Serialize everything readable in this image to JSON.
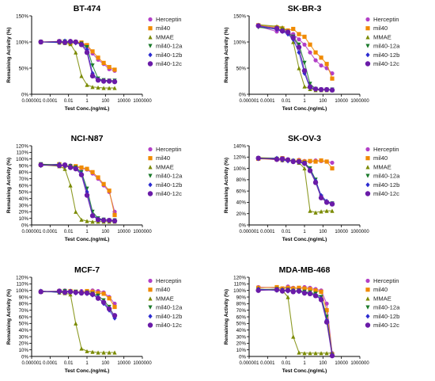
{
  "legend_labels": [
    "Herceptin",
    "mil40",
    "MMAE",
    "mil40-12a",
    "mil40-12b",
    "mil40-12c"
  ],
  "colors": {
    "Herceptin": "#b23fc6",
    "mil40": "#f08a00",
    "MMAE": "#7a8a00",
    "mil40-12a": "#1a7a2a",
    "mil40-12b": "#2b2bd0",
    "mil40-12c": "#6a1ba8"
  },
  "chart_data": [
    {
      "type": "scatter",
      "title": "BT-474",
      "xlabel": "Test Conc.(ng/mL)",
      "ylabel": "Remaining Activity (%)",
      "x_scale": "log",
      "xlim": [
        1e-06,
        1000000
      ],
      "x_ticks": [
        "0.000001",
        "0.0001",
        "0.01",
        "1",
        "100",
        "10000",
        "1000000"
      ],
      "ylim": [
        0,
        150
      ],
      "y_ticks": [
        "0%",
        "50%",
        "100%",
        "150%"
      ],
      "x": [
        1e-05,
        0.001,
        0.004,
        0.016,
        0.06,
        0.25,
        1,
        4,
        16,
        64,
        256,
        1000
      ],
      "series": [
        {
          "name": "Herceptin",
          "values": [
            100,
            100,
            99,
            102,
            100,
            98,
            92,
            78,
            66,
            58,
            48,
            45
          ]
        },
        {
          "name": "mil40",
          "values": [
            100,
            101,
            100,
            98,
            100,
            99,
            94,
            82,
            70,
            60,
            52,
            47
          ]
        },
        {
          "name": "MMAE",
          "values": [
            100,
            99,
            98,
            96,
            80,
            35,
            18,
            14,
            13,
            12,
            12,
            12
          ]
        },
        {
          "name": "mil40-12a",
          "values": [
            100,
            100,
            101,
            98,
            99,
            97,
            90,
            55,
            30,
            27,
            26,
            26
          ]
        },
        {
          "name": "mil40-12b",
          "values": [
            100,
            99,
            102,
            100,
            98,
            96,
            85,
            40,
            28,
            26,
            25,
            25
          ]
        },
        {
          "name": "mil40-12c",
          "values": [
            100,
            101,
            99,
            101,
            100,
            95,
            80,
            35,
            27,
            25,
            25,
            24
          ]
        }
      ]
    },
    {
      "type": "scatter",
      "title": "SK-BR-3",
      "xlabel": "Test Conc.(ng/mL)",
      "ylabel": "Remaining Activity (%)",
      "x_scale": "log",
      "xlim": [
        1e-06,
        1000000
      ],
      "x_ticks": [
        "0.000001",
        "0.0001",
        "0.01",
        "1",
        "100",
        "10000",
        "1000000"
      ],
      "ylim": [
        0,
        150
      ],
      "y_ticks": [
        "0%",
        "50%",
        "100%",
        "150%"
      ],
      "x": [
        1e-05,
        0.001,
        0.004,
        0.016,
        0.06,
        0.25,
        1,
        4,
        16,
        64,
        256,
        1000
      ],
      "series": [
        {
          "name": "Herceptin",
          "values": [
            130,
            120,
            125,
            118,
            115,
            105,
            95,
            80,
            65,
            55,
            50,
            40
          ]
        },
        {
          "name": "mil40",
          "values": [
            132,
            128,
            126,
            122,
            125,
            115,
            110,
            95,
            80,
            70,
            58,
            30
          ]
        },
        {
          "name": "MMAE",
          "values": [
            133,
            130,
            128,
            120,
            100,
            50,
            15,
            10,
            8,
            8,
            8,
            8
          ]
        },
        {
          "name": "mil40-12a",
          "values": [
            128,
            125,
            122,
            118,
            110,
            95,
            60,
            20,
            10,
            9,
            9,
            9
          ]
        },
        {
          "name": "mil40-12b",
          "values": [
            130,
            124,
            120,
            115,
            105,
            80,
            40,
            12,
            10,
            9,
            9,
            9
          ]
        },
        {
          "name": "mil40-12c",
          "values": [
            131,
            126,
            121,
            119,
            108,
            90,
            45,
            14,
            10,
            9,
            9,
            8
          ]
        }
      ]
    },
    {
      "type": "scatter",
      "title": "NCI-N87",
      "xlabel": "Test Conc.(ng/mL)",
      "ylabel": "Remaining Activity (%)",
      "x_scale": "log",
      "xlim": [
        1e-06,
        1000000
      ],
      "x_ticks": [
        "0.000001",
        "0.0001",
        "0.01",
        "1",
        "100",
        "10000",
        "1000000"
      ],
      "ylim": [
        0,
        120
      ],
      "y_ticks": [
        "0%",
        "10%",
        "20%",
        "30%",
        "40%",
        "50%",
        "60%",
        "70%",
        "80%",
        "90%",
        "100%",
        "110%",
        "120%"
      ],
      "x": [
        1e-05,
        0.001,
        0.004,
        0.016,
        0.06,
        0.25,
        1,
        4,
        16,
        64,
        256,
        1000
      ],
      "series": [
        {
          "name": "Herceptin",
          "values": [
            92,
            90,
            89,
            90,
            88,
            86,
            84,
            78,
            70,
            60,
            50,
            20
          ]
        },
        {
          "name": "mil40",
          "values": [
            91,
            92,
            90,
            88,
            89,
            87,
            85,
            80,
            72,
            62,
            52,
            15
          ]
        },
        {
          "name": "MMAE",
          "values": [
            91,
            89,
            85,
            60,
            20,
            8,
            6,
            5,
            5,
            5,
            5,
            5
          ]
        },
        {
          "name": "mil40-12a",
          "values": [
            92,
            91,
            90,
            89,
            87,
            80,
            55,
            20,
            10,
            8,
            7,
            7
          ]
        },
        {
          "name": "mil40-12b",
          "values": [
            90,
            92,
            89,
            88,
            86,
            78,
            50,
            15,
            9,
            8,
            7,
            7
          ]
        },
        {
          "name": "mil40-12c",
          "values": [
            91,
            90,
            91,
            87,
            85,
            76,
            45,
            14,
            8,
            7,
            7,
            6
          ]
        }
      ]
    },
    {
      "type": "scatter",
      "title": "SK-OV-3",
      "xlabel": "Test Conc.(ng/mL)",
      "ylabel": "Remaining Activity (%)",
      "x_scale": "log",
      "xlim": [
        1e-06,
        1000000
      ],
      "x_ticks": [
        "0.000001",
        "0.0001",
        "0.01",
        "1",
        "100",
        "10000",
        "1000000"
      ],
      "ylim": [
        0,
        140
      ],
      "y_ticks": [
        "0%",
        "20%",
        "40%",
        "60%",
        "80%",
        "100%",
        "120%",
        "140%"
      ],
      "x": [
        1e-05,
        0.001,
        0.004,
        0.016,
        0.06,
        0.25,
        1,
        4,
        16,
        64,
        256,
        1000
      ],
      "series": [
        {
          "name": "Herceptin",
          "values": [
            118,
            115,
            114,
            116,
            112,
            115,
            113,
            112,
            114,
            113,
            112,
            110
          ]
        },
        {
          "name": "mil40",
          "values": [
            117,
            116,
            118,
            115,
            113,
            114,
            112,
            113,
            112,
            114,
            112,
            100
          ]
        },
        {
          "name": "MMAE",
          "values": [
            119,
            118,
            115,
            115,
            113,
            110,
            100,
            25,
            22,
            24,
            25,
            25
          ]
        },
        {
          "name": "mil40-12a",
          "values": [
            118,
            117,
            116,
            114,
            113,
            112,
            110,
            100,
            80,
            50,
            40,
            38
          ]
        },
        {
          "name": "mil40-12b",
          "values": [
            117,
            118,
            115,
            113,
            114,
            111,
            108,
            98,
            78,
            52,
            42,
            38
          ]
        },
        {
          "name": "mil40-12c",
          "values": [
            118,
            116,
            117,
            115,
            112,
            112,
            109,
            96,
            75,
            48,
            40,
            37
          ]
        }
      ]
    },
    {
      "type": "scatter",
      "title": "MCF-7",
      "xlabel": "Test Conc.(ng/mL)",
      "ylabel": "Remaining Activity (%)",
      "x_scale": "log",
      "xlim": [
        1e-06,
        1000000
      ],
      "x_ticks": [
        "0.000001",
        "0.0001",
        "0.01",
        "1",
        "100",
        "10000",
        "1000000"
      ],
      "ylim": [
        0,
        120
      ],
      "y_ticks": [
        "0%",
        "10%",
        "20%",
        "30%",
        "40%",
        "50%",
        "60%",
        "70%",
        "80%",
        "90%",
        "100%",
        "110%",
        "120%"
      ],
      "x": [
        1e-05,
        0.001,
        0.004,
        0.016,
        0.06,
        0.25,
        1,
        4,
        16,
        64,
        256,
        1000
      ],
      "series": [
        {
          "name": "Herceptin",
          "values": [
            99,
            98,
            100,
            98,
            97,
            99,
            98,
            100,
            99,
            97,
            90,
            80
          ]
        },
        {
          "name": "mil40",
          "values": [
            98,
            99,
            97,
            99,
            98,
            97,
            99,
            98,
            96,
            95,
            88,
            75
          ]
        },
        {
          "name": "MMAE",
          "values": [
            99,
            97,
            96,
            94,
            50,
            12,
            8,
            7,
            6,
            6,
            6,
            6
          ]
        },
        {
          "name": "mil40-12a",
          "values": [
            98,
            98,
            99,
            97,
            98,
            96,
            97,
            95,
            92,
            85,
            75,
            60
          ]
        },
        {
          "name": "mil40-12b",
          "values": [
            99,
            97,
            98,
            99,
            96,
            98,
            95,
            93,
            90,
            80,
            70,
            58
          ]
        },
        {
          "name": "mil40-12c",
          "values": [
            98,
            99,
            97,
            98,
            97,
            96,
            96,
            94,
            88,
            82,
            72,
            62
          ]
        }
      ]
    },
    {
      "type": "scatter",
      "title": "MDA-MB-468",
      "xlabel": "Test Conc.(ng/mL)",
      "ylabel": "Remaining Activity (%)",
      "x_scale": "log",
      "xlim": [
        1e-06,
        1000000
      ],
      "x_ticks": [
        "0.000001",
        "0.0001",
        "0.01",
        "1",
        "100",
        "10000",
        "1000000"
      ],
      "ylim": [
        0,
        120
      ],
      "y_ticks": [
        "0%",
        "10%",
        "20%",
        "30%",
        "40%",
        "50%",
        "60%",
        "70%",
        "80%",
        "90%",
        "100%",
        "110%",
        "120%"
      ],
      "x": [
        1e-05,
        0.001,
        0.004,
        0.016,
        0.06,
        0.25,
        1,
        4,
        16,
        64,
        256,
        1000
      ],
      "series": [
        {
          "name": "Herceptin",
          "values": [
            105,
            104,
            103,
            106,
            104,
            103,
            105,
            104,
            102,
            100,
            80,
            5
          ]
        },
        {
          "name": "mil40",
          "values": [
            104,
            105,
            103,
            104,
            103,
            104,
            103,
            102,
            100,
            98,
            70,
            3
          ]
        },
        {
          "name": "MMAE",
          "values": [
            102,
            101,
            100,
            90,
            30,
            6,
            5,
            5,
            5,
            5,
            5,
            5
          ]
        },
        {
          "name": "mil40-12a",
          "values": [
            101,
            102,
            100,
            101,
            99,
            100,
            98,
            97,
            95,
            90,
            60,
            2
          ]
        },
        {
          "name": "mil40-12b",
          "values": [
            102,
            100,
            101,
            99,
            100,
            98,
            97,
            96,
            93,
            88,
            55,
            2
          ]
        },
        {
          "name": "mil40-12c",
          "values": [
            100,
            101,
            99,
            100,
            98,
            99,
            96,
            95,
            92,
            86,
            52,
            1
          ]
        }
      ]
    }
  ]
}
